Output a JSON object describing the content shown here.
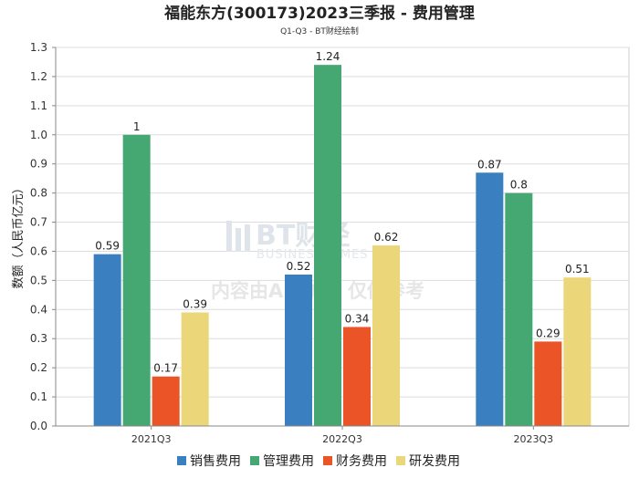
{
  "title": "福能东方(300173)2023三季报 - 费用管理",
  "subtitle": "Q1-Q3 - BT财经绘制",
  "watermark": {
    "brand": "BT财经",
    "brand_en": "BUSINESS TIMES",
    "notice": "内容由AI生成，仅供参考"
  },
  "colors": {
    "销售费用": "#3a80c1",
    "管理费用": "#45a772",
    "财务费用": "#ea5427",
    "研发费用": "#ecd67a"
  },
  "chart_data": {
    "type": "bar",
    "title": "福能东方(300173)2023三季报 - 费用管理",
    "subtitle": "Q1-Q3 - BT财经绘制",
    "xlabel": "",
    "ylabel": "数额（人民币亿元）",
    "categories": [
      "2021Q3",
      "2022Q3",
      "2023Q3"
    ],
    "series": [
      {
        "name": "销售费用",
        "values": [
          0.59,
          0.52,
          0.87
        ],
        "labels": [
          "0.59",
          "0.52",
          "0.87"
        ]
      },
      {
        "name": "管理费用",
        "values": [
          1.0,
          1.24,
          0.8
        ],
        "labels": [
          "1",
          "1.24",
          "0.8"
        ]
      },
      {
        "name": "财务费用",
        "values": [
          0.17,
          0.34,
          0.29
        ],
        "labels": [
          "0.17",
          "0.34",
          "0.29"
        ]
      },
      {
        "name": "研发费用",
        "values": [
          0.39,
          0.62,
          0.51
        ],
        "labels": [
          "0.39",
          "0.62",
          "0.51"
        ]
      }
    ],
    "ylim": [
      0,
      1.3
    ],
    "yticks": [
      "0.0",
      "0.1",
      "0.2",
      "0.3",
      "0.4",
      "0.5",
      "0.6",
      "0.7",
      "0.8",
      "0.9",
      "1.0",
      "1.1",
      "1.2",
      "1.3"
    ],
    "grid": true,
    "legend": "bottom"
  }
}
